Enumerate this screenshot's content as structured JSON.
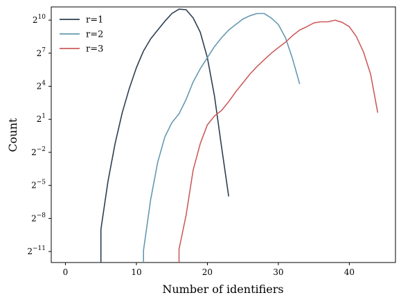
{
  "chart_data": {
    "type": "line",
    "xlabel": "Number of identifiers",
    "ylabel": "Count",
    "xlim": [
      -2,
      46.5
    ],
    "ylim_log2": [
      -12,
      11.2
    ],
    "y_scale": "log2",
    "grid": false,
    "legend_placement": "top-left",
    "x_ticks": [
      0,
      10,
      20,
      30,
      40
    ],
    "y_ticks_exp": [
      -11,
      -8,
      -5,
      -2,
      1,
      4,
      7,
      10
    ],
    "series": [
      {
        "name": "r=1",
        "color": "#2c3e50",
        "x": [
          5,
          5,
          6,
          7,
          8,
          9,
          10,
          11,
          12,
          13,
          14,
          15,
          16,
          17,
          18,
          19,
          20,
          21,
          22,
          23
        ],
        "y_log2": [
          -12,
          -9,
          -4.6,
          -1.2,
          1.6,
          3.8,
          5.7,
          7.2,
          8.3,
          9.1,
          9.9,
          10.6,
          11.0,
          10.95,
          10.2,
          8.9,
          6.6,
          3.1,
          -1.5,
          -6.0
        ]
      },
      {
        "name": "r=2",
        "color": "#6598b0",
        "x": [
          11,
          11,
          12,
          13,
          14,
          15,
          16,
          17,
          18,
          19,
          20,
          21,
          22,
          23,
          24,
          25,
          26,
          27,
          28,
          29,
          30,
          31,
          32,
          33
        ],
        "y_log2": [
          -12,
          -10.9,
          -6.3,
          -2.9,
          -0.6,
          0.7,
          1.5,
          2.8,
          4.4,
          5.6,
          6.6,
          7.6,
          8.4,
          9.1,
          9.6,
          10.1,
          10.4,
          10.6,
          10.6,
          10.2,
          9.6,
          8.4,
          6.5,
          4.2
        ]
      },
      {
        "name": "r=3",
        "color": "#cd5c5c",
        "x": [
          16,
          16,
          17,
          18,
          19,
          20,
          21,
          22,
          23,
          24,
          25,
          26,
          27,
          28,
          29,
          30,
          31,
          32,
          33,
          34,
          35,
          36,
          37,
          38,
          39,
          40,
          41,
          42,
          43,
          44
        ],
        "y_log2": [
          -12,
          -10.8,
          -7.7,
          -3.6,
          -1.2,
          0.5,
          1.3,
          1.8,
          2.6,
          3.5,
          4.3,
          5.1,
          5.8,
          6.4,
          7.0,
          7.5,
          8.0,
          8.6,
          9.1,
          9.4,
          9.75,
          9.85,
          9.85,
          10.0,
          9.8,
          9.4,
          8.5,
          7.1,
          5.1,
          1.6
        ]
      }
    ]
  }
}
